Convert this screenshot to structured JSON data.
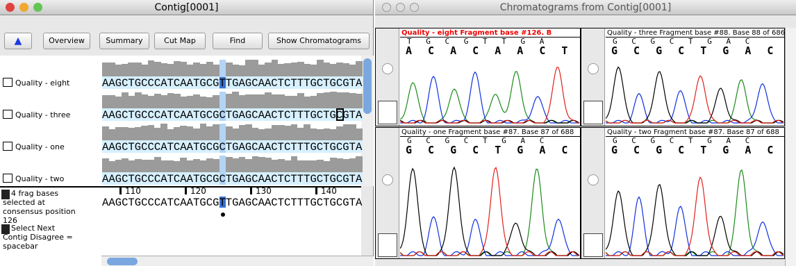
{
  "left_window": {
    "title": "Contig[0001]",
    "toolbar": [
      "Overview",
      "Summary",
      "Cut Map",
      "Find",
      "Show Chromatograms"
    ],
    "reads": [
      {
        "name": "Quality - eight",
        "sequence": "AAGCTGCCCATCAATGCGTTGAGCAACTCTTTGCTGCGTA"
      },
      {
        "name": "Quality - three",
        "sequence": "AAGCTGCCCATCAATGCGCTGAGCAACTCTTTGCTGCGTA"
      },
      {
        "name": "Quality - one",
        "sequence": "AAGCTGCCCATCAATGCGCTGAGCAACTCTTTGCTGCGTA"
      },
      {
        "name": "Quality - two",
        "sequence": "AAGCTGCCCATCAATGCGCTGAGCAACTCTTTGCTGCGTA"
      }
    ],
    "ruler": [
      110,
      120,
      130,
      140
    ],
    "consensus": "AAGCTGCCCATCAATGCGTTGAGCAACTCTTTGCTGCGTA",
    "status": [
      "4 frag bases selected at consensus position 126",
      "Select Next Contig Disagree = spacebar"
    ]
  },
  "right_window": {
    "title": "Chromatograms from Contig[0001]",
    "panels": [
      {
        "header": "Quality - eight Fragment base #126. B",
        "top_bases": "T G C G T T G A",
        "called_bases": "A C A C A A C T"
      },
      {
        "header": "Quality - three Fragment base #88. Base 88 of 686",
        "top_bases": "G C G C T G A C",
        "called_bases": "G C G C T G A C"
      },
      {
        "header": "Quality - one Fragment base #87. Base 87 of 688",
        "top_bases": "G C G C T G A C",
        "called_bases": "G C G C T G A C"
      },
      {
        "header": "Quality - two Fragment base #87. Base 87 of 688",
        "top_bases": "G C G C T G A C",
        "called_bases": "G C G C T G A C"
      }
    ]
  }
}
